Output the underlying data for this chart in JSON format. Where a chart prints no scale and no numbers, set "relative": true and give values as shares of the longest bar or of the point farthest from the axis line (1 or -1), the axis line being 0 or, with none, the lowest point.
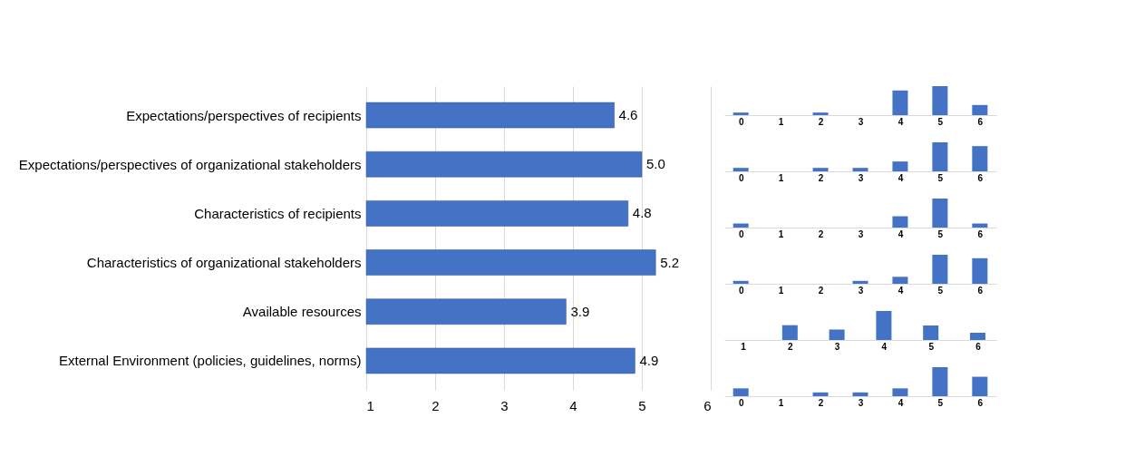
{
  "chart_data": [
    {
      "type": "bar",
      "orientation": "horizontal",
      "categories": [
        "Expectations/perspectives of recipients",
        "Expectations/perspectives of organizational stakeholders",
        "Characteristics of recipients",
        "Characteristics of organizational stakeholders",
        "Available resources",
        "External Environment (policies, guidelines, norms)"
      ],
      "values": [
        4.6,
        5.0,
        4.8,
        5.2,
        3.9,
        4.9
      ],
      "color": "#4472c4",
      "xlim": [
        1,
        6
      ],
      "xticks": [
        1,
        2,
        3,
        4,
        5,
        6
      ],
      "grid": "x",
      "data_labels": true,
      "value_labels": [
        "4.6",
        "5.0",
        "4.8",
        "5.2",
        "3.9",
        "4.9"
      ]
    },
    {
      "type": "bar",
      "relative": true,
      "categories": [
        "0",
        "1",
        "2",
        "3",
        "4",
        "5",
        "6"
      ],
      "values": [
        0.09,
        0,
        0.09,
        0,
        0.85,
        1,
        0.35
      ],
      "color": "#4472c4"
    },
    {
      "type": "bar",
      "relative": true,
      "categories": [
        "0",
        "1",
        "2",
        "3",
        "4",
        "5",
        "6"
      ],
      "values": [
        0.12,
        0,
        0.12,
        0.12,
        0.34,
        1,
        0.87
      ],
      "color": "#4472c4"
    },
    {
      "type": "bar",
      "relative": true,
      "categories": [
        "0",
        "1",
        "2",
        "3",
        "4",
        "5",
        "6"
      ],
      "values": [
        0.14,
        0,
        0,
        0,
        0.39,
        1,
        0.14
      ],
      "color": "#4472c4"
    },
    {
      "type": "bar",
      "relative": true,
      "categories": [
        "0",
        "1",
        "2",
        "3",
        "4",
        "5",
        "6"
      ],
      "values": [
        0.1,
        0,
        0,
        0.1,
        0.24,
        1,
        0.88
      ],
      "color": "#4472c4"
    },
    {
      "type": "bar",
      "relative": true,
      "categories": [
        "1",
        "2",
        "3",
        "4",
        "5",
        "6"
      ],
      "values": [
        0,
        0.51,
        0.36,
        1,
        0.5,
        0.25
      ],
      "color": "#4472c4"
    },
    {
      "type": "bar",
      "relative": true,
      "categories": [
        "0",
        "1",
        "2",
        "3",
        "4",
        "5",
        "6"
      ],
      "values": [
        0.27,
        0,
        0.13,
        0.13,
        0.27,
        1,
        0.67
      ],
      "color": "#4472c4"
    }
  ]
}
